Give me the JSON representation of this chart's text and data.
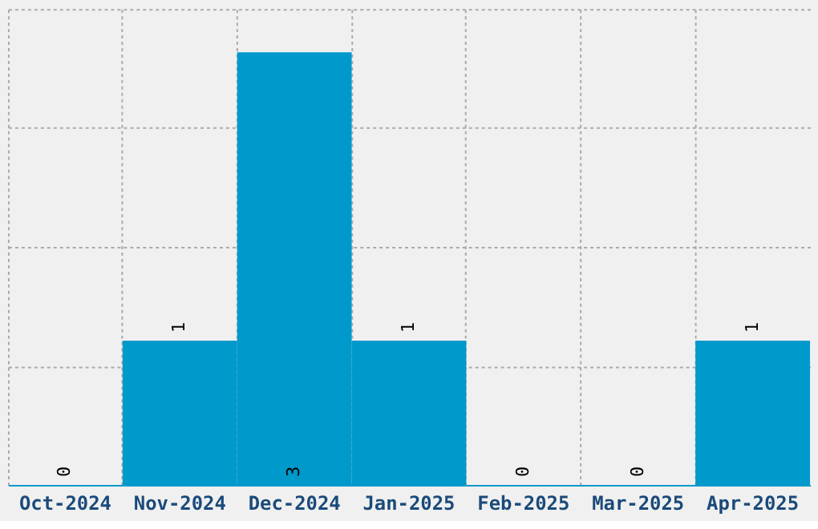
{
  "chart_data": {
    "type": "bar",
    "categories": [
      "Oct-2024",
      "Nov-2024",
      "Dec-2024",
      "Jan-2025",
      "Feb-2025",
      "Mar-2025",
      "Apr-2025"
    ],
    "values": [
      0,
      1,
      3,
      1,
      0,
      0,
      1
    ],
    "color": "#0099cc",
    "data_labels": true,
    "ylim": [
      0,
      3.3
    ],
    "yticks": [
      {
        "value": 0.825,
        "label": null
      },
      {
        "value": 1.65,
        "label": null
      },
      {
        "value": 2.475,
        "label": null
      },
      {
        "value": 3.3,
        "label": null
      }
    ],
    "grid": true,
    "tick_labels": "x"
  }
}
